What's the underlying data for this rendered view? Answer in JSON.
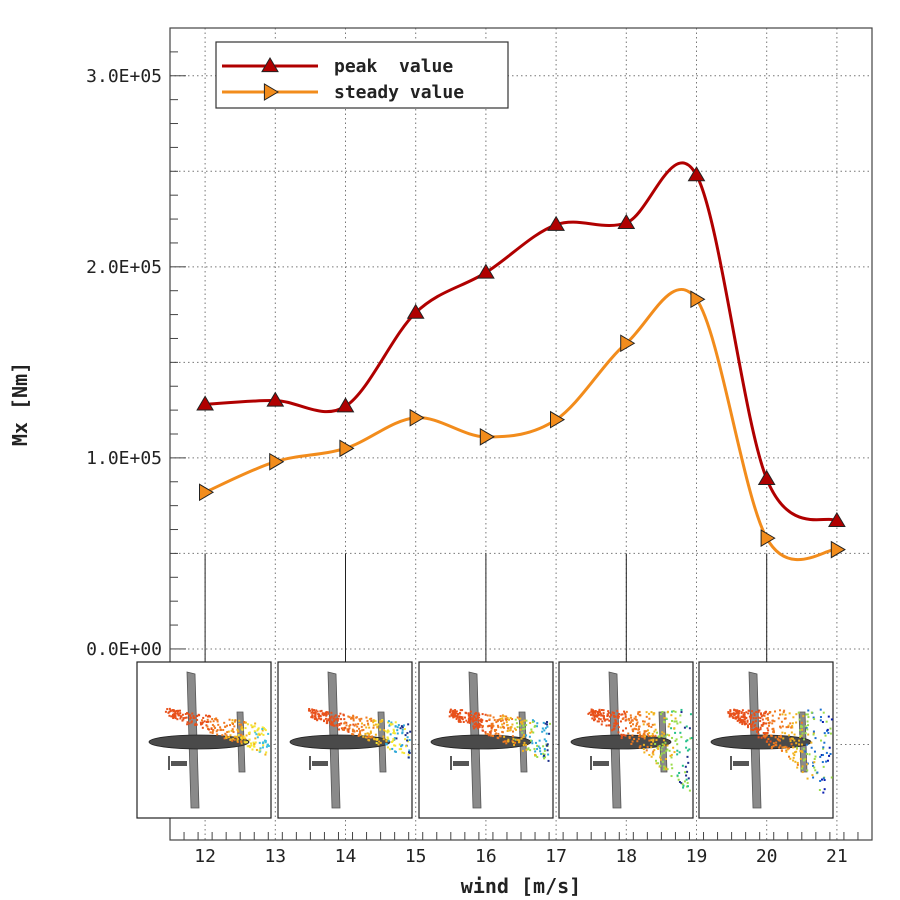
{
  "chart_data": {
    "type": "line",
    "title": "",
    "xlabel": "wind [m/s]",
    "ylabel": "Mx [Nm]",
    "xlim": [
      11.5,
      21.5
    ],
    "ylim": [
      -100000,
      325000
    ],
    "x_ticks": [
      12,
      13,
      14,
      15,
      16,
      17,
      18,
      19,
      20,
      21
    ],
    "x_tick_labels": [
      "12",
      "13",
      "14",
      "15",
      "16",
      "17",
      "18",
      "19",
      "20",
      "21"
    ],
    "y_ticks": [
      0,
      100000,
      200000,
      300000
    ],
    "y_tick_labels": [
      "0.0E+00",
      "1.0E+05",
      "2.0E+05",
      "3.0E+05"
    ],
    "grid": true,
    "legend_position": "top-left",
    "x": [
      12,
      13,
      14,
      15,
      16,
      17,
      18,
      19,
      20,
      21
    ],
    "series": [
      {
        "name": "peak  value",
        "color": "#b00000",
        "marker": "triangle-up",
        "values": [
          128000,
          130000,
          127000,
          176000,
          197000,
          222000,
          223000,
          248000,
          89000,
          67000
        ]
      },
      {
        "name": "steady value",
        "color": "#f28c1c",
        "marker": "triangle-right",
        "values": [
          82000,
          98000,
          105000,
          121000,
          111000,
          120000,
          160000,
          183000,
          58000,
          52000
        ]
      }
    ],
    "insets": {
      "description_icon": "aircraft-wake-simulation",
      "anchor_x": [
        12,
        14,
        16,
        18,
        20
      ]
    }
  }
}
